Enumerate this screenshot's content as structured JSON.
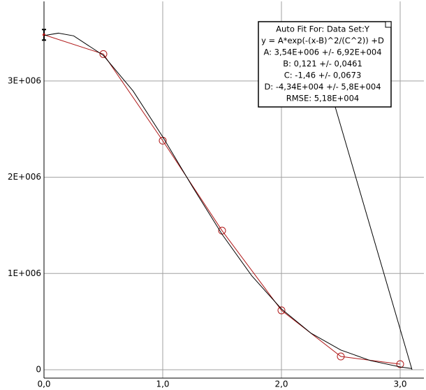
{
  "chart_data": {
    "type": "scatter",
    "x": [
      0.0,
      0.5,
      1.0,
      1.5,
      2.0,
      2.5,
      3.0
    ],
    "series": [
      {
        "color": "#b01818",
        "values": [
          3480000,
          3280000,
          2380000,
          1445000,
          617000,
          138000,
          58000
        ],
        "errors": [
          55000,
          null,
          null,
          null,
          null,
          null,
          null
        ]
      },
      {
        "color": "#000000",
        "x": [
          0,
          0.121,
          0.25,
          0.5,
          0.75,
          1.0,
          1.25,
          1.5,
          1.75,
          2.0,
          2.25,
          2.5,
          2.75,
          3.0,
          3.1
        ],
        "values": [
          3472000,
          3497000,
          3469000,
          3266000,
          2897000,
          2420000,
          1903000,
          1407000,
          976000,
          632000,
          379000,
          205000,
          95000,
          29000,
          12000
        ]
      }
    ],
    "xlim": [
      0,
      3.2
    ],
    "ylim": [
      -87000,
      3827000
    ],
    "xticks": [
      {
        "value": 0,
        "label": "0,0"
      },
      {
        "value": 1,
        "label": "1,0"
      },
      {
        "value": 2,
        "label": "2,0"
      },
      {
        "value": 3,
        "label": "3,0"
      }
    ],
    "yticks": [
      0,
      {
        "value": 1000000,
        "label": "1E+006"
      },
      {
        "value": 2000000,
        "label": "2E+006"
      },
      {
        "value": 3000000,
        "label": "3E+006"
      }
    ],
    "grid": true,
    "annotation": [
      "Auto Fit For:  Data Set:Y",
      "y = A*exp(-(x-B)^2/(C^2)) +D",
      "A: 3,54E+006 +/- 6,92E+004",
      "B: 0,121 +/- 0,0461",
      "C: -1,46 +/- 0,0673",
      "D: -4,34E+004 +/- 5,8E+004",
      "RMSE: 5,18E+004"
    ]
  }
}
